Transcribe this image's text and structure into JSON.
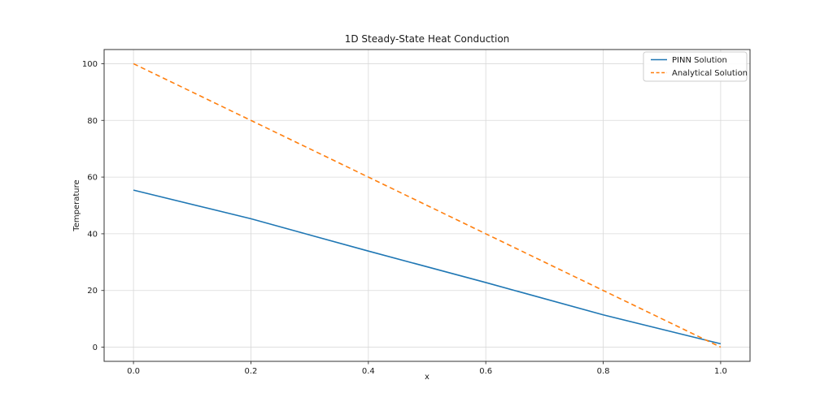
{
  "figure": {
    "background": "#ffffff"
  },
  "chart_data": {
    "type": "line",
    "title": "1D Steady-State Heat Conduction",
    "xlabel": "x",
    "ylabel": "Temperature",
    "x": [
      0.0,
      0.2,
      0.4,
      0.6,
      0.8,
      1.0
    ],
    "series": [
      {
        "name": "PINN Solution",
        "color": "#1f77b4",
        "style": "solid",
        "values": [
          55.4,
          45.3,
          33.9,
          22.8,
          11.4,
          1.2
        ]
      },
      {
        "name": "Analytical Solution",
        "color": "#ff7f0e",
        "style": "dashed",
        "values": [
          100,
          80,
          60,
          40,
          20,
          0
        ]
      }
    ],
    "xlim": [
      -0.05,
      1.05
    ],
    "ylim": [
      -5,
      105
    ],
    "xticks": [
      0.0,
      0.2,
      0.4,
      0.6,
      0.8,
      1.0
    ],
    "xtick_labels": [
      "0.0",
      "0.2",
      "0.4",
      "0.6",
      "0.8",
      "1.0"
    ],
    "yticks": [
      0,
      20,
      40,
      60,
      80,
      100
    ],
    "ytick_labels": [
      "0",
      "20",
      "40",
      "60",
      "80",
      "100"
    ],
    "grid": true,
    "legend": {
      "position": "upper right",
      "entries": [
        "PINN Solution",
        "Analytical Solution"
      ]
    }
  }
}
